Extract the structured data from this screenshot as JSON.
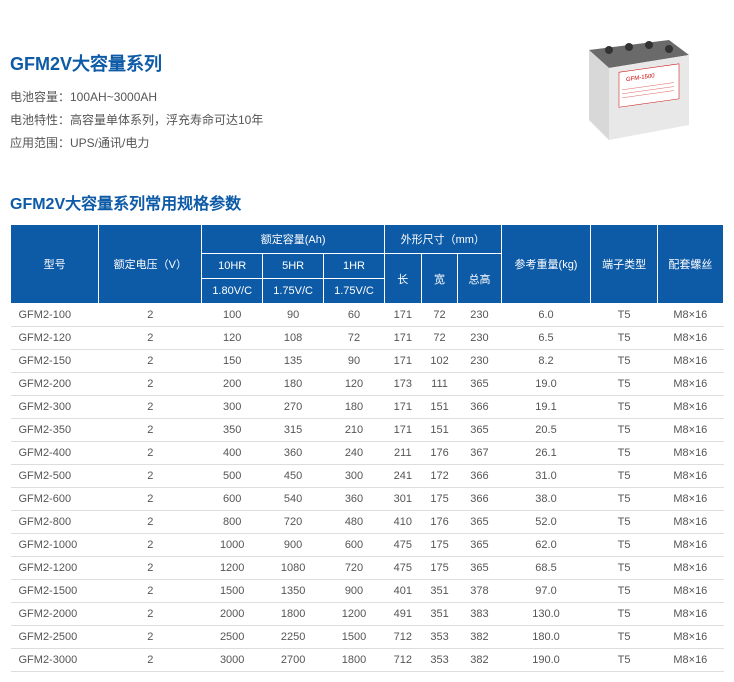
{
  "header": {
    "title": "GFM2V大容量系列",
    "specs": [
      "电池容量：100AH~3000AH",
      "电池特性：高容量单体系列，浮充寿命可达10年",
      "应用范围：UPS/通讯/电力"
    ]
  },
  "table": {
    "subtitle": "GFM2V大容量系列常用规格参数",
    "type": "table",
    "header_bg": "#0d5aa7",
    "header_fg": "#ffffff",
    "title_color": "#0d5aa7",
    "row_border": "#dddddd",
    "text_color": "#555555",
    "font_size": 11,
    "columns": {
      "model": "型号",
      "voltage": "额定电压（V）",
      "capacity_group": "额定容量(Ah)",
      "cap_10hr": "10HR",
      "cap_5hr": "5HR",
      "cap_1hr": "1HR",
      "volt_180": "1.80V/C",
      "volt_175a": "1.75V/C",
      "volt_175b": "1.75V/C",
      "dim_group": "外形尺寸（mm）",
      "length": "长",
      "width": "宽",
      "height": "总高",
      "weight": "参考重量(kg)",
      "terminal": "端子类型",
      "screw": "配套螺丝"
    },
    "rows": [
      {
        "model": "GFM2-100",
        "v": "2",
        "c10": "100",
        "c5": "90",
        "c1": "60",
        "l": "171",
        "w": "72",
        "h": "230",
        "wt": "6.0",
        "t": "T5",
        "s": "M8×16"
      },
      {
        "model": "GFM2-120",
        "v": "2",
        "c10": "120",
        "c5": "108",
        "c1": "72",
        "l": "171",
        "w": "72",
        "h": "230",
        "wt": "6.5",
        "t": "T5",
        "s": "M8×16"
      },
      {
        "model": "GFM2-150",
        "v": "2",
        "c10": "150",
        "c5": "135",
        "c1": "90",
        "l": "171",
        "w": "102",
        "h": "230",
        "wt": "8.2",
        "t": "T5",
        "s": "M8×16"
      },
      {
        "model": "GFM2-200",
        "v": "2",
        "c10": "200",
        "c5": "180",
        "c1": "120",
        "l": "173",
        "w": "111",
        "h": "365",
        "wt": "19.0",
        "t": "T5",
        "s": "M8×16"
      },
      {
        "model": "GFM2-300",
        "v": "2",
        "c10": "300",
        "c5": "270",
        "c1": "180",
        "l": "171",
        "w": "151",
        "h": "366",
        "wt": "19.1",
        "t": "T5",
        "s": "M8×16"
      },
      {
        "model": "GFM2-350",
        "v": "2",
        "c10": "350",
        "c5": "315",
        "c1": "210",
        "l": "171",
        "w": "151",
        "h": "365",
        "wt": "20.5",
        "t": "T5",
        "s": "M8×16"
      },
      {
        "model": "GFM2-400",
        "v": "2",
        "c10": "400",
        "c5": "360",
        "c1": "240",
        "l": "211",
        "w": "176",
        "h": "367",
        "wt": "26.1",
        "t": "T5",
        "s": "M8×16"
      },
      {
        "model": "GFM2-500",
        "v": "2",
        "c10": "500",
        "c5": "450",
        "c1": "300",
        "l": "241",
        "w": "172",
        "h": "366",
        "wt": "31.0",
        "t": "T5",
        "s": "M8×16"
      },
      {
        "model": "GFM2-600",
        "v": "2",
        "c10": "600",
        "c5": "540",
        "c1": "360",
        "l": "301",
        "w": "175",
        "h": "366",
        "wt": "38.0",
        "t": "T5",
        "s": "M8×16"
      },
      {
        "model": "GFM2-800",
        "v": "2",
        "c10": "800",
        "c5": "720",
        "c1": "480",
        "l": "410",
        "w": "176",
        "h": "365",
        "wt": "52.0",
        "t": "T5",
        "s": "M8×16"
      },
      {
        "model": "GFM2-1000",
        "v": "2",
        "c10": "1000",
        "c5": "900",
        "c1": "600",
        "l": "475",
        "w": "175",
        "h": "365",
        "wt": "62.0",
        "t": "T5",
        "s": "M8×16"
      },
      {
        "model": "GFM2-1200",
        "v": "2",
        "c10": "1200",
        "c5": "1080",
        "c1": "720",
        "l": "475",
        "w": "175",
        "h": "365",
        "wt": "68.5",
        "t": "T5",
        "s": "M8×16"
      },
      {
        "model": "GFM2-1500",
        "v": "2",
        "c10": "1500",
        "c5": "1350",
        "c1": "900",
        "l": "401",
        "w": "351",
        "h": "378",
        "wt": "97.0",
        "t": "T5",
        "s": "M8×16"
      },
      {
        "model": "GFM2-2000",
        "v": "2",
        "c10": "2000",
        "c5": "1800",
        "c1": "1200",
        "l": "491",
        "w": "351",
        "h": "383",
        "wt": "130.0",
        "t": "T5",
        "s": "M8×16"
      },
      {
        "model": "GFM2-2500",
        "v": "2",
        "c10": "2500",
        "c5": "2250",
        "c1": "1500",
        "l": "712",
        "w": "353",
        "h": "382",
        "wt": "180.0",
        "t": "T5",
        "s": "M8×16"
      },
      {
        "model": "GFM2-3000",
        "v": "2",
        "c10": "3000",
        "c5": "2700",
        "c1": "1800",
        "l": "712",
        "w": "353",
        "h": "382",
        "wt": "190.0",
        "t": "T5",
        "s": "M8×16"
      }
    ]
  }
}
